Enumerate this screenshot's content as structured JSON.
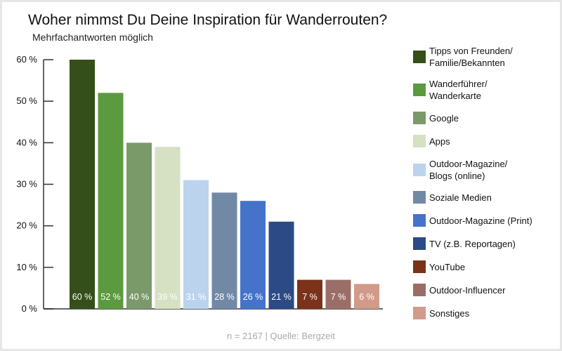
{
  "chart_data": {
    "type": "bar",
    "title": "Woher nimmst Du Deine Inspiration für Wanderrouten?",
    "subtitle": "Mehrfachantworten möglich",
    "categories": [
      "Tipps von Freunden/\nFamilie/Bekannten",
      "Wanderführer/\nWanderkarte",
      "Google",
      "Apps",
      "Outdoor-Magazine/\nBlogs (online)",
      "Soziale Medien",
      "Outdoor-Magazine (Print)",
      "TV (z.B. Reportagen)",
      "YouTube",
      "Outdoor-Influencer",
      "Sonstiges"
    ],
    "values": [
      60,
      52,
      40,
      39,
      31,
      28,
      26,
      21,
      7,
      7,
      6
    ],
    "data_labels": [
      "60 %",
      "52 %",
      "40 %",
      "39 %",
      "31 %",
      "28 %",
      "26 %",
      "21 %",
      "7 %",
      "7 %",
      "6 %"
    ],
    "colors": [
      "#344f1a",
      "#5b9a3e",
      "#7a9a6a",
      "#d6e0c3",
      "#bcd3ee",
      "#7289a6",
      "#4473c9",
      "#2c4a85",
      "#7a3218",
      "#9a6e66",
      "#d29a8a"
    ],
    "label_colors": [
      "#ffffff",
      "#ffffff",
      "#ffffff",
      "#ffffff",
      "#ffffff",
      "#ffffff",
      "#ffffff",
      "#ffffff",
      "#ffffff",
      "#ffffff",
      "#ffffff"
    ],
    "ylim": [
      0,
      60
    ],
    "yticks": [
      0,
      10,
      20,
      30,
      40,
      50,
      60
    ],
    "ytick_labels": [
      "0 %",
      "10 %",
      "20 %",
      "30 %",
      "40 %",
      "50 %",
      "60 %"
    ],
    "xlabel": "",
    "ylabel": "",
    "grid": false,
    "legend_position": "right"
  },
  "footer": "n = 2167 | Quelle: Bergzeit"
}
